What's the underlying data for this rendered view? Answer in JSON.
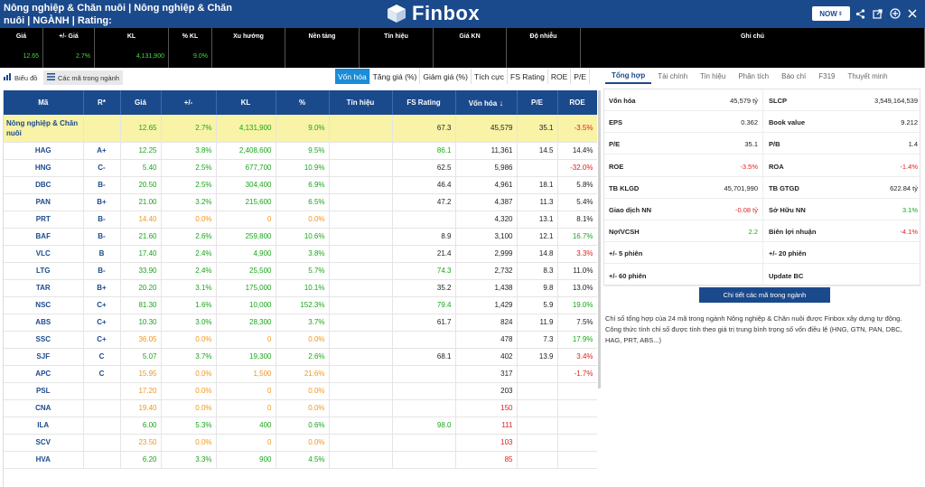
{
  "header": {
    "title": "Nông nghiệp & Chăn nuôi | Nông nghiệp & Chăn nuôi | NGÀNH | Rating:",
    "brand": "Finbox",
    "now_label": "NOW",
    "icons": [
      "share-icon",
      "external-link-icon",
      "plus-circle-icon",
      "close-icon"
    ]
  },
  "quote": {
    "columns": [
      "Giá",
      "+/- Giá",
      "KL",
      "% KL",
      "Xu hướng",
      "Nền tảng",
      "Tín hiệu",
      "Giá KN",
      "Độ nhiễu",
      "Ghi chú"
    ],
    "values": [
      "12.65",
      "2.7%",
      "4,131,900",
      "9.0%",
      "",
      "",
      "",
      "",
      "",
      ""
    ]
  },
  "left_tabs": {
    "chart_label": "Biểu đồ",
    "codes_label": "Các mã trong ngành"
  },
  "sort_tabs": [
    "Vốn hóa",
    "Tăng giá (%)",
    "Giảm giá (%)",
    "Tích cực",
    "FS Rating",
    "ROE",
    "P/E"
  ],
  "table": {
    "headers": [
      "Mã",
      "R*",
      "Giá",
      "+/-",
      "KL",
      "%",
      "Tín hiệu",
      "FS Rating",
      "Vốn hóa",
      "P/E",
      "ROE"
    ],
    "group": {
      "code": "Nông nghiệp & Chăn nuôi",
      "price": "12.65",
      "change": "2.7%",
      "vol": "4,131,900",
      "pct": "9.0%",
      "signal": "",
      "fs": "67.3",
      "cap": "45,579",
      "pe": "35.1",
      "roe": "-3.5%"
    },
    "rows": [
      {
        "code": "HAG",
        "r": "A+",
        "price": "12.25",
        "change": "3.8%",
        "vol": "2,408,600",
        "pct": "9.5%",
        "signal": "",
        "fs": "86.1",
        "cap": "11,361",
        "pe": "14.5",
        "roe": "14.4%",
        "pc": "g",
        "fc": "g",
        "rc": "k"
      },
      {
        "code": "HNG",
        "r": "C-",
        "price": "5.40",
        "change": "2.5%",
        "vol": "677,700",
        "pct": "10.9%",
        "signal": "",
        "fs": "62.5",
        "cap": "5,986",
        "pe": "",
        "roe": "-32.0%",
        "pc": "g",
        "fc": "k",
        "rc": "r"
      },
      {
        "code": "DBC",
        "r": "B-",
        "price": "20.50",
        "change": "2.5%",
        "vol": "304,400",
        "pct": "6.9%",
        "signal": "",
        "fs": "46.4",
        "cap": "4,961",
        "pe": "18.1",
        "roe": "5.8%",
        "pc": "g",
        "fc": "k",
        "rc": "k"
      },
      {
        "code": "PAN",
        "r": "B+",
        "price": "21.00",
        "change": "3.2%",
        "vol": "215,600",
        "pct": "6.5%",
        "signal": "",
        "fs": "47.2",
        "cap": "4,387",
        "pe": "11.3",
        "roe": "5.4%",
        "pc": "g",
        "fc": "k",
        "rc": "k"
      },
      {
        "code": "PRT",
        "r": "B-",
        "price": "14.40",
        "change": "0.0%",
        "vol": "0",
        "pct": "0.0%",
        "signal": "",
        "fs": "",
        "cap": "4,320",
        "pe": "13.1",
        "roe": "8.1%",
        "pc": "o",
        "fc": "k",
        "rc": "k"
      },
      {
        "code": "BAF",
        "r": "B-",
        "price": "21.60",
        "change": "2.6%",
        "vol": "259,800",
        "pct": "10.6%",
        "signal": "",
        "fs": "8.9",
        "cap": "3,100",
        "pe": "12.1",
        "roe": "16.7%",
        "pc": "g",
        "fc": "k",
        "rc": "g"
      },
      {
        "code": "VLC",
        "r": "B",
        "price": "17.40",
        "change": "2.4%",
        "vol": "4,900",
        "pct": "3.8%",
        "signal": "",
        "fs": "21.4",
        "cap": "2,999",
        "pe": "14.8",
        "roe": "3.3%",
        "pc": "g",
        "fc": "k",
        "rc": "r"
      },
      {
        "code": "LTG",
        "r": "B-",
        "price": "33.90",
        "change": "2.4%",
        "vol": "25,500",
        "pct": "5.7%",
        "signal": "",
        "fs": "74.3",
        "cap": "2,732",
        "pe": "8.3",
        "roe": "11.0%",
        "pc": "g",
        "fc": "g",
        "rc": "k"
      },
      {
        "code": "TAR",
        "r": "B+",
        "price": "20.20",
        "change": "3.1%",
        "vol": "175,000",
        "pct": "10.1%",
        "signal": "",
        "fs": "35.2",
        "cap": "1,438",
        "pe": "9.8",
        "roe": "13.0%",
        "pc": "g",
        "fc": "k",
        "rc": "k"
      },
      {
        "code": "NSC",
        "r": "C+",
        "price": "81.30",
        "change": "1.6%",
        "vol": "10,000",
        "pct": "152.3%",
        "signal": "",
        "fs": "79.4",
        "cap": "1,429",
        "pe": "5.9",
        "roe": "19.0%",
        "pc": "g",
        "fc": "g",
        "rc": "g"
      },
      {
        "code": "ABS",
        "r": "C+",
        "price": "10.30",
        "change": "3.0%",
        "vol": "28,300",
        "pct": "3.7%",
        "signal": "",
        "fs": "61.7",
        "cap": "824",
        "pe": "11.9",
        "roe": "7.5%",
        "pc": "g",
        "fc": "k",
        "rc": "k"
      },
      {
        "code": "SSC",
        "r": "C+",
        "price": "36.05",
        "change": "0.0%",
        "vol": "0",
        "pct": "0.0%",
        "signal": "",
        "fs": "",
        "cap": "478",
        "pe": "7.3",
        "roe": "17.9%",
        "pc": "o",
        "fc": "k",
        "rc": "g"
      },
      {
        "code": "SJF",
        "r": "C",
        "price": "5.07",
        "change": "3.7%",
        "vol": "19,300",
        "pct": "2.6%",
        "signal": "",
        "fs": "68.1",
        "cap": "402",
        "pe": "13.9",
        "roe": "3.4%",
        "pc": "g",
        "fc": "k",
        "rc": "r"
      },
      {
        "code": "APC",
        "r": "C",
        "price": "15.95",
        "change": "0.0%",
        "vol": "1,500",
        "pct": "21.6%",
        "signal": "",
        "fs": "",
        "cap": "317",
        "pe": "",
        "roe": "-1.7%",
        "pc": "o",
        "fc": "k",
        "rc": "r"
      },
      {
        "code": "PSL",
        "r": "",
        "price": "17.20",
        "change": "0.0%",
        "vol": "0",
        "pct": "0.0%",
        "signal": "",
        "fs": "",
        "cap": "203",
        "pe": "",
        "roe": "",
        "pc": "o",
        "fc": "k",
        "rc": "k"
      },
      {
        "code": "CNA",
        "r": "",
        "price": "19.40",
        "change": "0.0%",
        "vol": "0",
        "pct": "0.0%",
        "signal": "",
        "fs": "",
        "cap": "150",
        "pe": "",
        "roe": "",
        "pc": "o",
        "fc": "k",
        "rc": "k",
        "capc": "r"
      },
      {
        "code": "ILA",
        "r": "",
        "price": "6.00",
        "change": "5.3%",
        "vol": "400",
        "pct": "0.6%",
        "signal": "",
        "fs": "98.0",
        "cap": "111",
        "pe": "",
        "roe": "",
        "pc": "g",
        "fc": "g",
        "rc": "k",
        "capc": "r"
      },
      {
        "code": "SCV",
        "r": "",
        "price": "23.50",
        "change": "0.0%",
        "vol": "0",
        "pct": "0.0%",
        "signal": "",
        "fs": "",
        "cap": "103",
        "pe": "",
        "roe": "",
        "pc": "o",
        "fc": "k",
        "rc": "k",
        "capc": "r"
      },
      {
        "code": "HVA",
        "r": "",
        "price": "6.20",
        "change": "3.3%",
        "vol": "900",
        "pct": "4.5%",
        "signal": "",
        "fs": "",
        "cap": "85",
        "pe": "",
        "roe": "",
        "pc": "g",
        "fc": "k",
        "rc": "k",
        "capc": "r"
      }
    ]
  },
  "right_tabs": [
    "Tổng hợp",
    "Tài chính",
    "Tin hiệu",
    "Phân tích",
    "Báo chí",
    "F319",
    "Thuyết minh"
  ],
  "stats": {
    "left": [
      {
        "label": "Vốn hóa",
        "value": "45,579 tỷ",
        "c": "k"
      },
      {
        "label": "EPS",
        "value": "0.362",
        "c": "k"
      },
      {
        "label": "P/E",
        "value": "35.1",
        "c": "k"
      },
      {
        "label": "ROE",
        "value": "-3.5%",
        "c": "r"
      },
      {
        "label": "TB KLGD",
        "value": "45,701,990",
        "c": "k"
      },
      {
        "label": "Giao dịch NN",
        "value": "-0.08 tỷ",
        "c": "r"
      },
      {
        "label": "Nợ/VCSH",
        "value": "2.2",
        "c": "g"
      },
      {
        "label": "+/- 5 phiên",
        "value": "",
        "c": "k"
      },
      {
        "label": "+/- 60 phiên",
        "value": "",
        "c": "k"
      }
    ],
    "right": [
      {
        "label": "SLCP",
        "value": "3,549,164,539",
        "c": "k"
      },
      {
        "label": "Book value",
        "value": "9.212",
        "c": "k"
      },
      {
        "label": "P/B",
        "value": "1.4",
        "c": "k"
      },
      {
        "label": "ROA",
        "value": "-1.4%",
        "c": "r"
      },
      {
        "label": "TB GTGD",
        "value": "622.84 tỷ",
        "c": "k"
      },
      {
        "label": "Sở Hữu NN",
        "value": "3.1%",
        "c": "g"
      },
      {
        "label": "Biên lợi nhuận",
        "value": "-4.1%",
        "c": "r"
      },
      {
        "label": "+/- 20 phiên",
        "value": "",
        "c": "k"
      },
      {
        "label": "Update BC",
        "value": "",
        "c": "k"
      }
    ]
  },
  "detail_button": "Chi tiết các mã trong ngành",
  "note": "Chỉ số tổng hợp của 24 mã trong ngành Nông nghiệp & Chăn nuôi được Finbox xây dựng tự động. Công thức tính chỉ số được tính theo giá trị trung bình trọng số vốn điều lệ (HNG, GTN, PAN, DBC, HAG, PRT, ABS...)"
}
